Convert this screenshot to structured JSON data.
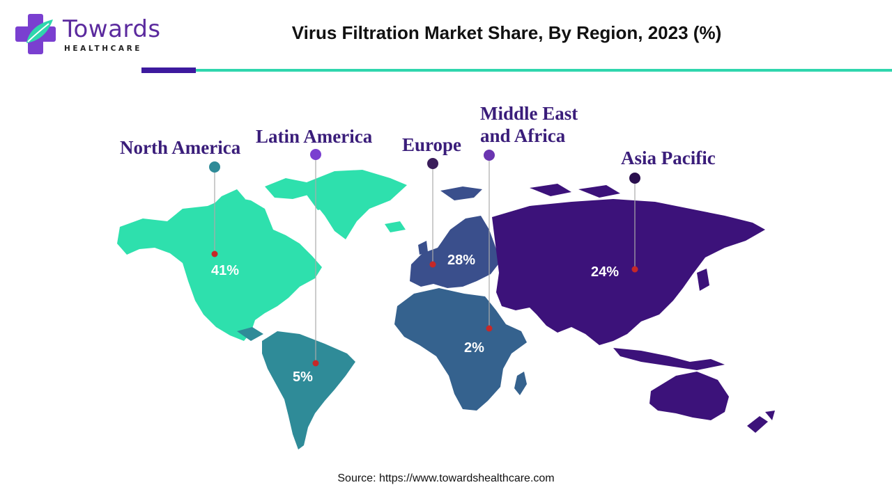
{
  "header": {
    "logo_main": "Towards",
    "logo_sub": "HEALTHCARE",
    "title": "Virus Filtration Market Share, By Region, 2023 (%)"
  },
  "colors": {
    "north_america": "#2ee0ad",
    "latin_america": "#2f8b98",
    "europe": "#3a4f8c",
    "middle_east_africa": "#35628e",
    "asia_pacific": "#3c127a",
    "label_text": "#3a1d7a",
    "marker_dot": "#c62828"
  },
  "regions": [
    {
      "key": "north_america",
      "name": "North America",
      "value": "41%"
    },
    {
      "key": "latin_america",
      "name": "Latin America",
      "value": "5%"
    },
    {
      "key": "europe",
      "name": "Europe",
      "value": "28%"
    },
    {
      "key": "middle_east_africa",
      "name": "Middle East and Africa",
      "name_line1": "Middle East",
      "name_line2": "and Africa",
      "value": "2%"
    },
    {
      "key": "asia_pacific",
      "name": "Asia Pacific",
      "value": "24%"
    }
  ],
  "footer": {
    "source": "Source: https://www.towardshealthcare.com"
  }
}
